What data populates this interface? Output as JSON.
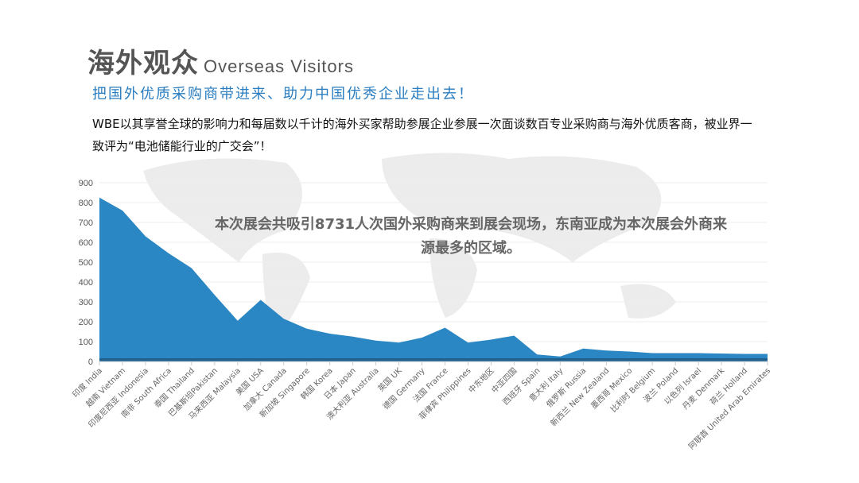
{
  "header": {
    "title_cn": "海外观众",
    "title_en": "Overseas Visitors",
    "subtitle": "把国外优质采购商带进来、助力中国优秀企业走出去！",
    "description": "WBE以其享誉全球的影响力和每届数以千计的海外买家帮助参展企业参展一次面谈数百专业采购商与海外优质客商，被业界一致评为“电池储能行业的广交会”！"
  },
  "chart_data": {
    "type": "area",
    "categories": [
      "印度 India",
      "越南 Vietnam",
      "印度尼西亚 Indonesia",
      "南非 South Africa",
      "泰国 Thailand",
      "巴基斯坦Pakistan",
      "马来西亚 Malaysia",
      "美国 USA",
      "加拿大 Canada",
      "新加坡 Singapore",
      "韩国 Korea",
      "日本 Japan",
      "澳大利亚 Australia",
      "英国 UK",
      "德国 Germany",
      "法国 France",
      "菲律宾 Philippines",
      "中东地区",
      "中亚四国",
      "西班牙 Spain",
      "意大利 Italy",
      "俄罗斯 Russia",
      "新西兰 New Zealand",
      "墨西哥 Mexico",
      "比利时 Belgium",
      "波兰 Poland",
      "以色列 Israel",
      "丹麦 Denmark",
      "荷兰 Holland",
      "阿联酋 United Arab Emirates"
    ],
    "values": [
      825,
      760,
      630,
      545,
      470,
      335,
      205,
      310,
      215,
      165,
      140,
      125,
      105,
      95,
      120,
      170,
      95,
      110,
      130,
      35,
      25,
      65,
      55,
      50,
      42,
      42,
      42,
      40,
      38,
      38
    ],
    "ylim": [
      0,
      900
    ],
    "yticks": [
      0,
      100,
      200,
      300,
      400,
      500,
      600,
      700,
      800,
      900
    ],
    "grid": true,
    "color": "#2b87c3",
    "annotation": "本次展会共吸引8731人次国外采购商来到展会现场，东南亚成为本次展会外商来源最多的区域。"
  }
}
